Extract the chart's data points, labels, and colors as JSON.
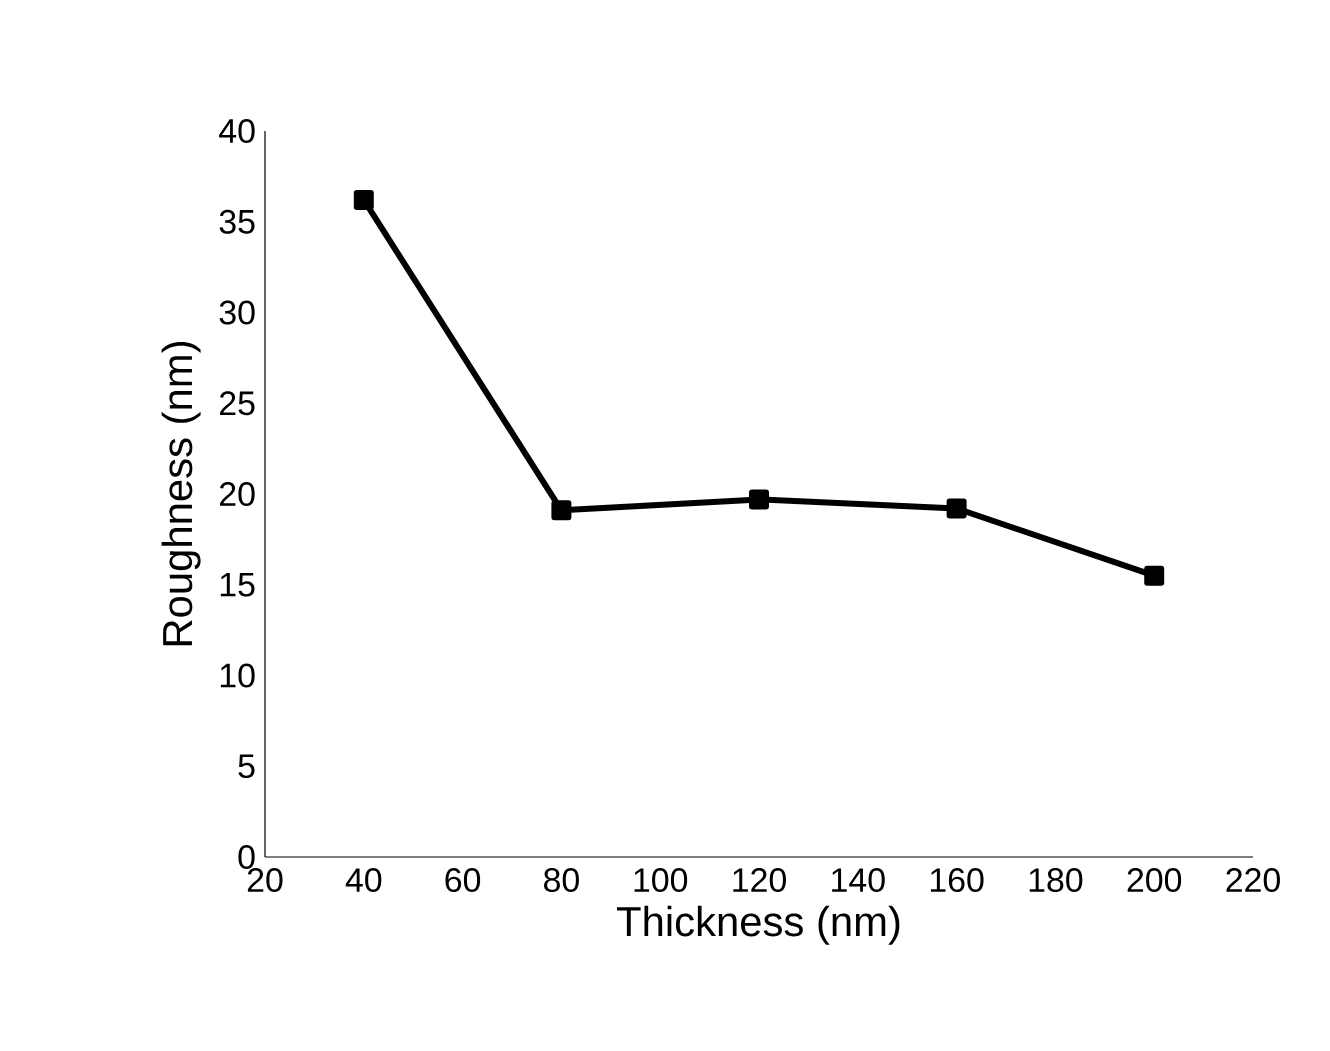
{
  "chart_data": {
    "type": "line",
    "xlabel": "Thickness (nm)",
    "ylabel": "Roughness (nm)",
    "x": [
      40,
      80,
      120,
      160,
      200
    ],
    "series": [
      {
        "color": "#000000",
        "values": [
          36.2,
          19.1,
          19.7,
          19.2,
          15.5
        ]
      }
    ],
    "xlim": [
      20,
      220
    ],
    "xticks": [
      20,
      40,
      60,
      80,
      100,
      120,
      140,
      160,
      180,
      200,
      220
    ],
    "ylim": [
      0,
      40
    ],
    "yticks": [
      0,
      5,
      10,
      15,
      20,
      25,
      30,
      35,
      40
    ],
    "grid": false,
    "marker": "square",
    "line_style": "solid"
  }
}
